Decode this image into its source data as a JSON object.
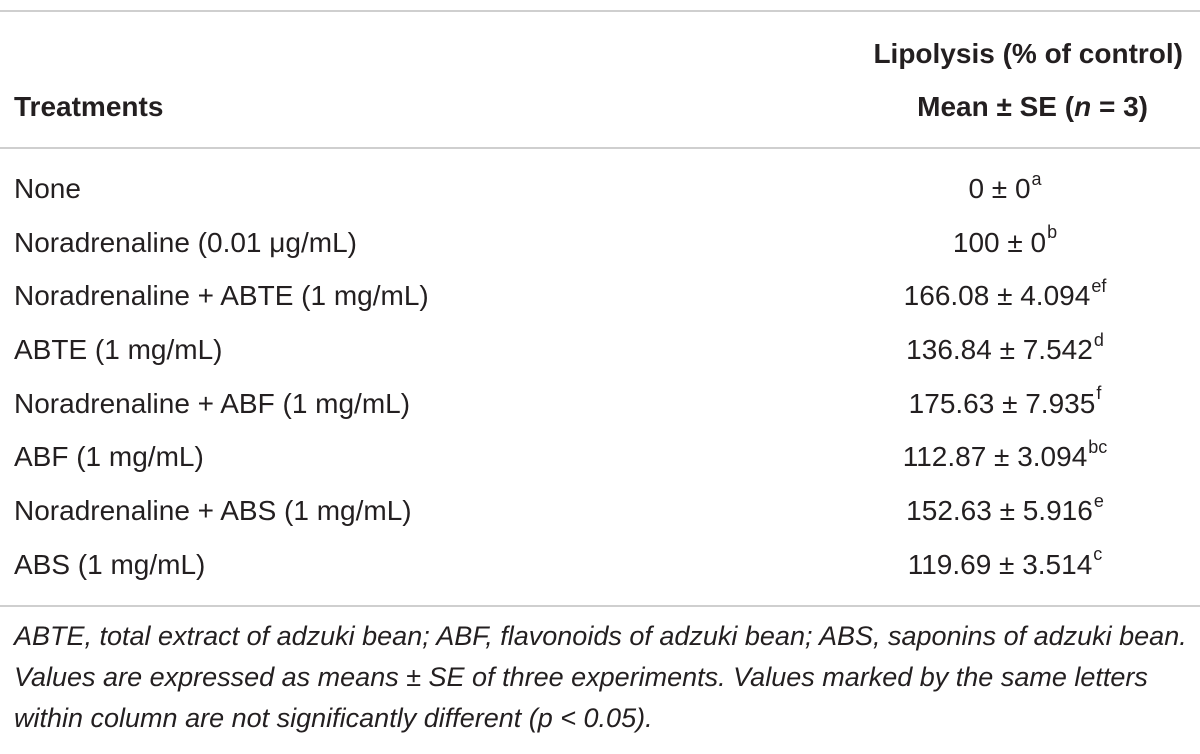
{
  "table": {
    "header": {
      "treatments_label": "Treatments",
      "lipolysis_label": "Lipolysis (% of control)",
      "stat_label_prefix": "Mean ± SE (",
      "stat_label_n": "n",
      "stat_label_suffix": " = 3)"
    },
    "rows": [
      {
        "treatment": "None",
        "value": "0 ± 0",
        "letters": "a"
      },
      {
        "treatment": "Noradrenaline (0.01 μg/mL)",
        "value": "100 ± 0",
        "letters": "b"
      },
      {
        "treatment": "Noradrenaline + ABTE (1 mg/mL)",
        "value": "166.08 ± 4.094",
        "letters": "ef"
      },
      {
        "treatment": "ABTE (1 mg/mL)",
        "value": "136.84 ± 7.542",
        "letters": "d"
      },
      {
        "treatment": "Noradrenaline + ABF (1 mg/mL)",
        "value": "175.63 ± 7.935",
        "letters": "f"
      },
      {
        "treatment": "ABF (1 mg/mL)",
        "value": "112.87 ± 3.094",
        "letters": "bc"
      },
      {
        "treatment": "Noradrenaline + ABS (1 mg/mL)",
        "value": "152.63 ± 5.916",
        "letters": "e"
      },
      {
        "treatment": "ABS (1 mg/mL)",
        "value": "119.69 ± 3.514",
        "letters": "c"
      }
    ],
    "footnote": "ABTE, total extract of adzuki bean; ABF, flavonoids of adzuki bean; ABS, saponins of adzuki bean. Values are expressed as means ± SE of three experiments. Values marked by the same letters within column are not significantly different (p < 0.05)."
  }
}
